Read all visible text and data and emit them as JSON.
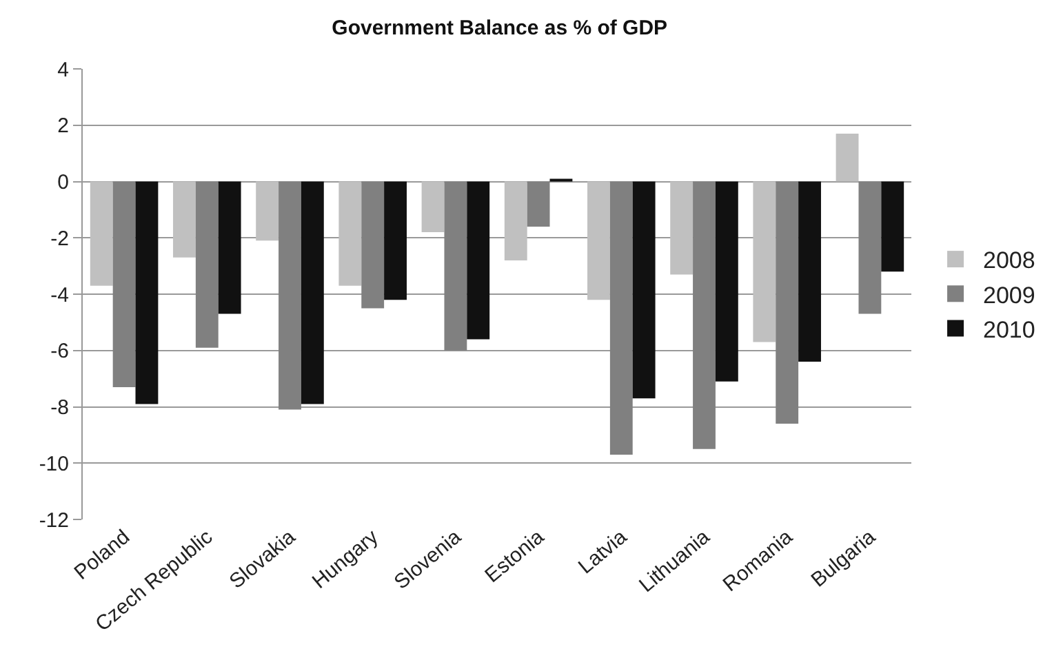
{
  "chart_data": {
    "type": "bar",
    "title": "Government Balance as % of GDP",
    "categories": [
      "Poland",
      "Czech Republic",
      "Slovakia",
      "Hungary",
      "Slovenia",
      "Estonia",
      "Latvia",
      "Lithuania",
      "Romania",
      "Bulgaria"
    ],
    "series": [
      {
        "name": "2008",
        "color": "#c0c0c0",
        "values": [
          -3.7,
          -2.7,
          -2.1,
          -3.7,
          -1.8,
          -2.8,
          -4.2,
          -3.3,
          -5.7,
          1.7
        ]
      },
      {
        "name": "2009",
        "color": "#808080",
        "values": [
          -7.3,
          -5.9,
          -8.1,
          -4.5,
          -6.0,
          -1.6,
          -9.7,
          -9.5,
          -8.6,
          -4.7
        ]
      },
      {
        "name": "2010",
        "color": "#111111",
        "values": [
          -7.9,
          -4.7,
          -7.9,
          -4.2,
          -5.6,
          0.1,
          -7.7,
          -7.1,
          -6.4,
          -3.2
        ]
      }
    ],
    "ylim": [
      -12,
      4
    ],
    "yticks": [
      -12,
      -10,
      -8,
      -6,
      -4,
      -2,
      0,
      2,
      4
    ],
    "grid": "y",
    "legend": "right"
  }
}
